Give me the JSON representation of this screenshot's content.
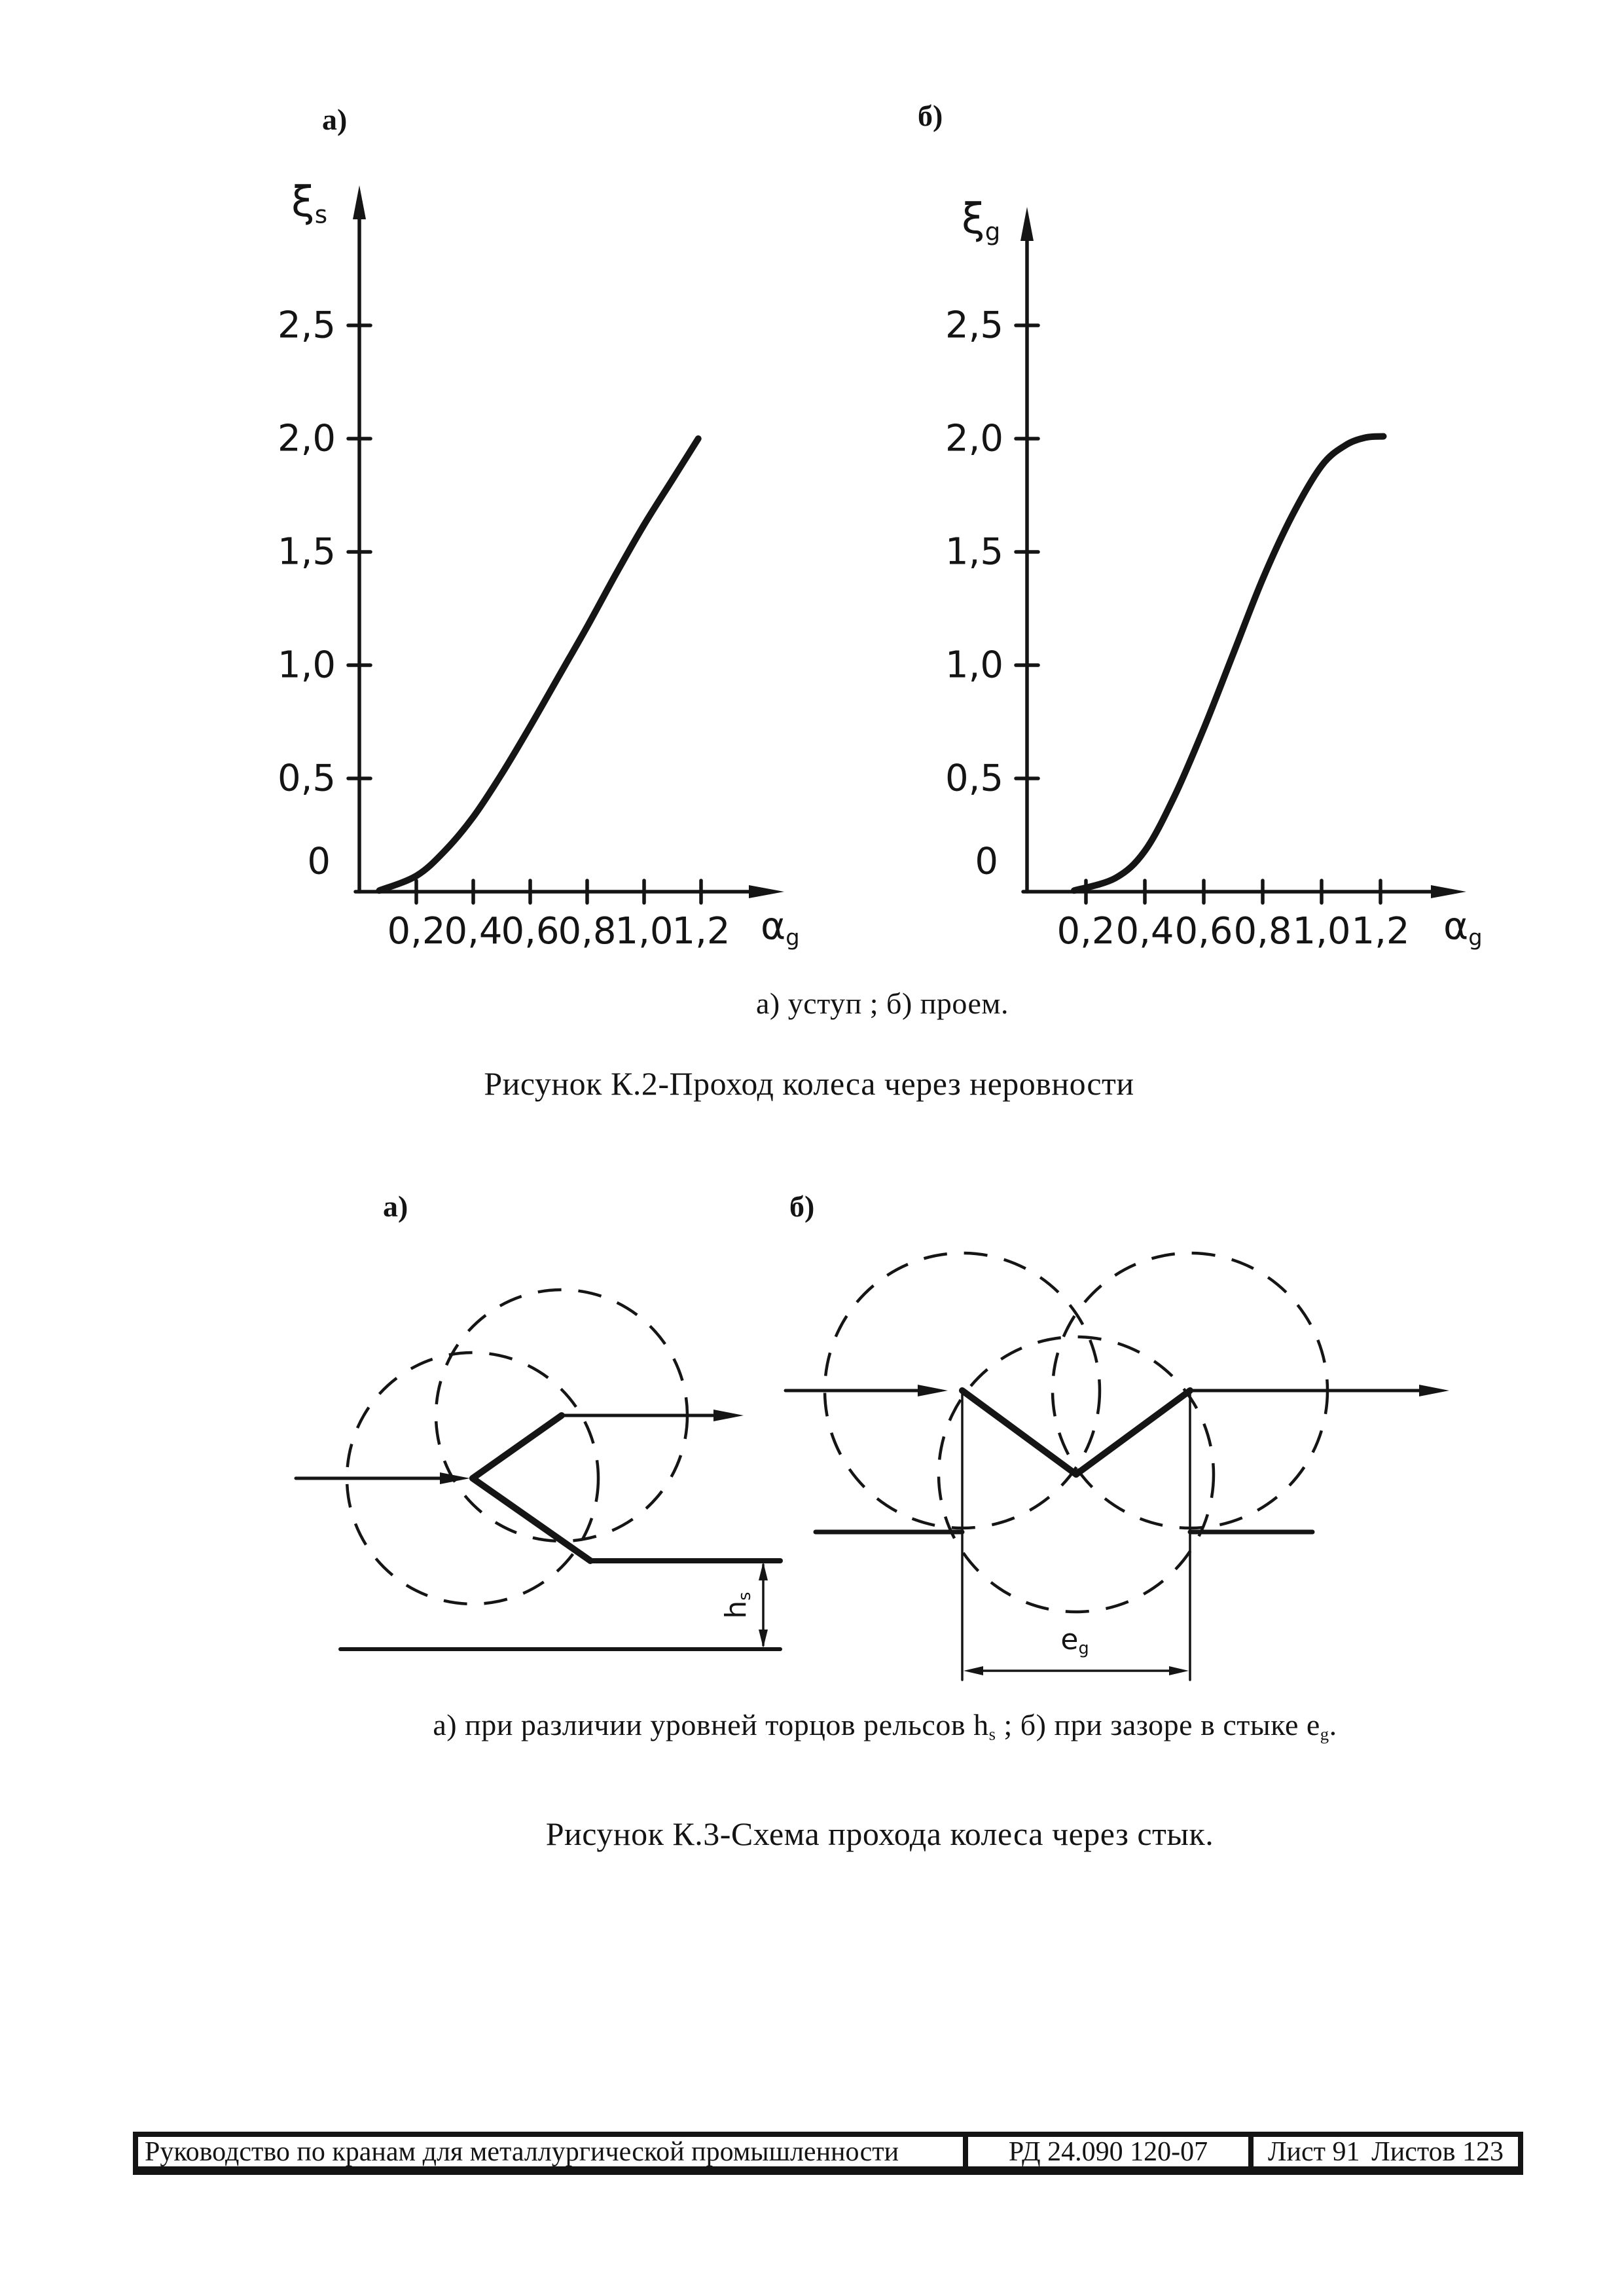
{
  "chart_data": [
    {
      "type": "line",
      "panel_label": "а)",
      "ylabel": {
        "base": "ξ",
        "sub": "s"
      },
      "xlabel": {
        "base": "α",
        "sub": "g"
      },
      "x_ticks": [
        {
          "v": 0.2,
          "label": "0,2"
        },
        {
          "v": 0.4,
          "label": "0,4"
        },
        {
          "v": 0.6,
          "label": "0,6"
        },
        {
          "v": 0.8,
          "label": "0,8"
        },
        {
          "v": 1.0,
          "label": "1,0"
        },
        {
          "v": 1.2,
          "label": "1,2"
        }
      ],
      "y_ticks": [
        {
          "v": 0,
          "label": "0"
        },
        {
          "v": 0.5,
          "label": "0,5"
        },
        {
          "v": 1.0,
          "label": "1,0"
        },
        {
          "v": 1.5,
          "label": "1,5"
        },
        {
          "v": 2.0,
          "label": "2,0"
        },
        {
          "v": 2.5,
          "label": "2,5"
        }
      ],
      "xlim": [
        0,
        1.45
      ],
      "ylim": [
        0,
        3.1
      ],
      "grid": false,
      "legend": "none",
      "series": [
        {
          "name": "ξs",
          "points": [
            [
              0.07,
              0.005
            ],
            [
              0.2,
              0.07
            ],
            [
              0.3,
              0.18
            ],
            [
              0.4,
              0.33
            ],
            [
              0.5,
              0.52
            ],
            [
              0.6,
              0.73
            ],
            [
              0.7,
              0.95
            ],
            [
              0.8,
              1.17
            ],
            [
              0.9,
              1.4
            ],
            [
              1.0,
              1.62
            ],
            [
              1.1,
              1.82
            ],
            [
              1.19,
              2.0
            ]
          ]
        }
      ]
    },
    {
      "type": "line",
      "panel_label": "б)",
      "ylabel": {
        "base": "ξ",
        "sub": "g"
      },
      "xlabel": {
        "base": "α",
        "sub": "g"
      },
      "x_ticks": [
        {
          "v": 0.2,
          "label": "0,2"
        },
        {
          "v": 0.4,
          "label": "0,4"
        },
        {
          "v": 0.6,
          "label": "0,6"
        },
        {
          "v": 0.8,
          "label": "0,8"
        },
        {
          "v": 1.0,
          "label": "1,0"
        },
        {
          "v": 1.2,
          "label": "1,2"
        }
      ],
      "y_ticks": [
        {
          "v": 0,
          "label": "0"
        },
        {
          "v": 0.5,
          "label": "0,5"
        },
        {
          "v": 1.0,
          "label": "1,0"
        },
        {
          "v": 1.5,
          "label": "1,5"
        },
        {
          "v": 2.0,
          "label": "2,0"
        },
        {
          "v": 2.5,
          "label": "2,5"
        }
      ],
      "xlim": [
        0,
        1.45
      ],
      "ylim": [
        0,
        3.1
      ],
      "grid": false,
      "legend": "none",
      "series": [
        {
          "name": "ξg",
          "points": [
            [
              0.16,
              0.005
            ],
            [
              0.3,
              0.06
            ],
            [
              0.4,
              0.18
            ],
            [
              0.5,
              0.42
            ],
            [
              0.6,
              0.72
            ],
            [
              0.7,
              1.05
            ],
            [
              0.8,
              1.38
            ],
            [
              0.9,
              1.66
            ],
            [
              1.0,
              1.88
            ],
            [
              1.08,
              1.97
            ],
            [
              1.15,
              2.005
            ],
            [
              1.21,
              2.01
            ]
          ]
        }
      ]
    }
  ],
  "figure_k2": {
    "subcaption": "а) уступ ; б) проем.",
    "title": "Рисунок К.2-Проход колеса через неровности"
  },
  "figure_k3": {
    "panel_a_label": "а)",
    "panel_b_label": "б)",
    "dim_a": {
      "base": "h",
      "sub": "s"
    },
    "dim_b": {
      "base": "e",
      "sub": "g"
    },
    "subcaption": {
      "part1": "а) при различии уровней торцов рельсов ",
      "sym1": "h",
      "sub1": "s",
      "part2": " ; б) при зазоре в стыке ",
      "sym2": "e",
      "sub2": "g",
      "part3": "."
    },
    "title": "Рисунок К.3-Схема прохода колеса через стык."
  },
  "footer": {
    "title": "Руководство по кранам для металлургической промышленности",
    "doc_number": "РД 24.090 120-07",
    "sheet": "Лист 91",
    "sheets": "Листов 123"
  }
}
